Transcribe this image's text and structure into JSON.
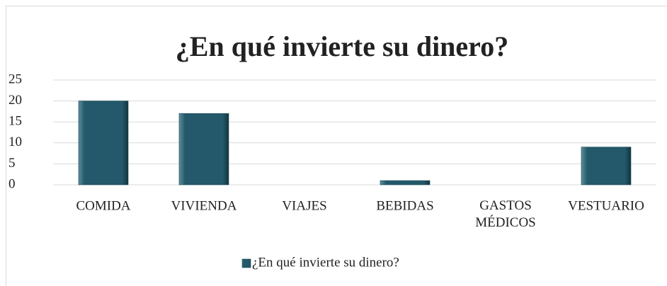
{
  "chart_data": {
    "type": "bar",
    "title": "¿En qué invierte su dinero?",
    "categories": [
      "COMIDA",
      "VIVIENDA",
      "VIAJES",
      "BEBIDAS",
      "GASTOS MÉDICOS",
      "VESTUARIO"
    ],
    "series": [
      {
        "name": "¿En qué invierte su dinero?",
        "color": "#23596a",
        "values": [
          20,
          17,
          0,
          1,
          0,
          9
        ]
      }
    ],
    "ylim": [
      0,
      25
    ],
    "yticks": [
      0,
      5,
      10,
      15,
      20,
      25
    ],
    "grid": true,
    "legend": "bottom"
  }
}
